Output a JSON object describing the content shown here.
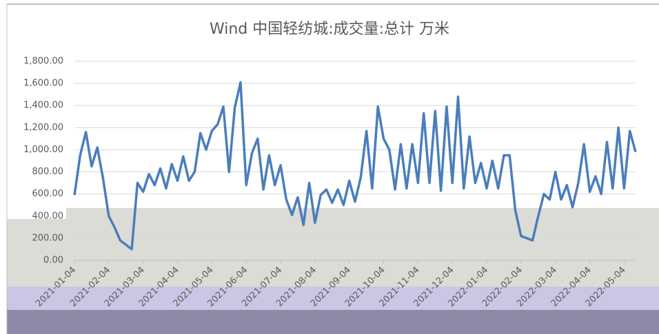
{
  "chart_data": {
    "type": "line",
    "title": "Wind 中国轻纺城:成交量:总计 万米",
    "categories": [
      "2021-01-04",
      null,
      null,
      null,
      null,
      null,
      "2021-02-04",
      null,
      null,
      null,
      null,
      null,
      "2021-03-04",
      null,
      null,
      null,
      null,
      null,
      "2021-04-04",
      null,
      null,
      null,
      null,
      null,
      "2021-05-04",
      null,
      null,
      null,
      null,
      null,
      "2021-06-04",
      null,
      null,
      null,
      null,
      null,
      "2021-07-04",
      null,
      null,
      null,
      null,
      null,
      "2021-08-04",
      null,
      null,
      null,
      null,
      null,
      "2021-09-04",
      null,
      null,
      null,
      null,
      null,
      "2021-10-04",
      null,
      null,
      null,
      null,
      null,
      "2021-11-04",
      null,
      null,
      null,
      null,
      null,
      "2021-12-04",
      null,
      null,
      null,
      null,
      null,
      "2022-01-04",
      null,
      null,
      null,
      null,
      null,
      "2022-02-04",
      null,
      null,
      null,
      null,
      null,
      "2022-03-04",
      null,
      null,
      null,
      null,
      null,
      "2022-04-04",
      null,
      null,
      null,
      null,
      null,
      "2022-05-04",
      null,
      null
    ],
    "series": [
      {
        "name": "成交量",
        "color": "#4a7ebb",
        "values": [
          590,
          950,
          1160,
          850,
          1020,
          740,
          400,
          300,
          180,
          140,
          100,
          700,
          620,
          780,
          680,
          830,
          650,
          870,
          720,
          940,
          720,
          800,
          1150,
          1000,
          1170,
          1230,
          1390,
          800,
          1380,
          1610,
          680,
          970,
          1100,
          640,
          950,
          680,
          860,
          550,
          410,
          570,
          320,
          700,
          340,
          590,
          640,
          520,
          640,
          500,
          720,
          530,
          750,
          1170,
          650,
          1390,
          1100,
          1000,
          640,
          1050,
          650,
          1050,
          700,
          1330,
          700,
          1350,
          630,
          1390,
          700,
          1480,
          650,
          1120,
          700,
          880,
          650,
          900,
          650,
          950,
          950,
          450,
          220,
          200,
          180,
          400,
          600,
          550,
          800,
          550,
          680,
          480,
          700,
          1050,
          620,
          760,
          600,
          1070,
          650,
          1200,
          650,
          1170,
          980
        ]
      }
    ],
    "ylim": [
      0,
      1800
    ],
    "yticks": [
      {
        "value": 0,
        "label": "0.00"
      },
      {
        "value": 200,
        "label": "200.00"
      },
      {
        "value": 400,
        "label": "400.00"
      },
      {
        "value": 600,
        "label": "600.00"
      },
      {
        "value": 800,
        "label": "800.00"
      },
      {
        "value": 1000,
        "label": "1,000.00"
      },
      {
        "value": 1200,
        "label": "1,200.00"
      },
      {
        "value": 1400,
        "label": "1,400.00"
      },
      {
        "value": 1600,
        "label": "1,600.00"
      },
      {
        "value": 1800,
        "label": "1,800.00"
      }
    ],
    "grid": true
  }
}
